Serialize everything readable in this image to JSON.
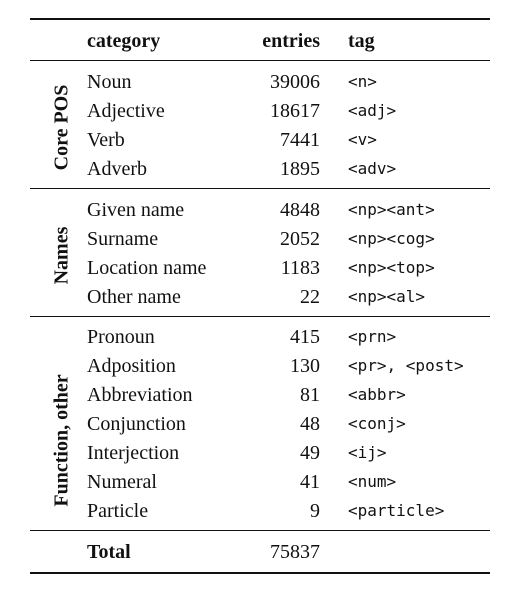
{
  "table": {
    "headers": {
      "category": "category",
      "entries": "entries",
      "tag": "tag"
    },
    "groups": [
      {
        "label": "Core POS",
        "rows": [
          {
            "category": "Noun",
            "entries": "39006",
            "tag": "<n>"
          },
          {
            "category": "Adjective",
            "entries": "18617",
            "tag": "<adj>"
          },
          {
            "category": "Verb",
            "entries": "7441",
            "tag": "<v>"
          },
          {
            "category": "Adverb",
            "entries": "1895",
            "tag": "<adv>"
          }
        ]
      },
      {
        "label": "Names",
        "rows": [
          {
            "category": "Given name",
            "entries": "4848",
            "tag": "<np><ant>"
          },
          {
            "category": "Surname",
            "entries": "2052",
            "tag": "<np><cog>"
          },
          {
            "category": "Location name",
            "entries": "1183",
            "tag": "<np><top>"
          },
          {
            "category": "Other name",
            "entries": "22",
            "tag": "<np><al>"
          }
        ]
      },
      {
        "label": "Function, other",
        "rows": [
          {
            "category": "Pronoun",
            "entries": "415",
            "tag": "<prn>"
          },
          {
            "category": "Adposition",
            "entries": "130",
            "tag": "<pr>, <post>"
          },
          {
            "category": "Abbreviation",
            "entries": "81",
            "tag": "<abbr>"
          },
          {
            "category": "Conjunction",
            "entries": "48",
            "tag": "<conj>"
          },
          {
            "category": "Interjection",
            "entries": "49",
            "tag": "<ij>"
          },
          {
            "category": "Numeral",
            "entries": "41",
            "tag": "<num>"
          },
          {
            "category": "Particle",
            "entries": "9",
            "tag": "<particle>"
          }
        ]
      }
    ],
    "total": {
      "label": "Total",
      "entries": "75837"
    }
  }
}
